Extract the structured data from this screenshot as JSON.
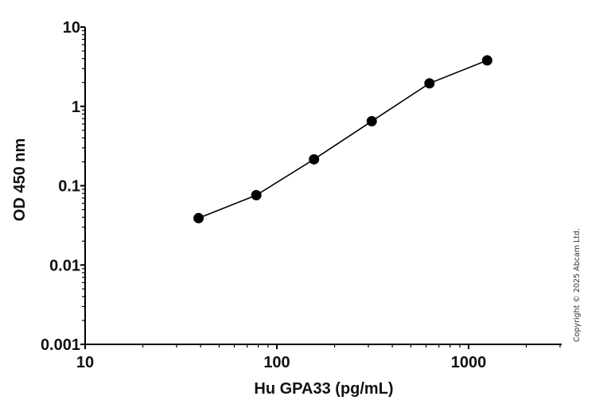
{
  "chart_data": {
    "type": "line",
    "title": "",
    "xlabel": "Hu GPA33 (pg/mL)",
    "ylabel": "OD 450 nm",
    "x_scale": "log",
    "y_scale": "log",
    "xlim": [
      10,
      3000
    ],
    "ylim": [
      0.001,
      10
    ],
    "x_ticks": [
      "10",
      "100",
      "1000"
    ],
    "y_ticks": [
      "0.001",
      "0.01",
      "0.1",
      "1",
      "10"
    ],
    "grid": false,
    "legend": null,
    "series": [
      {
        "name": "Hu GPA33",
        "x": [
          39.06,
          78.13,
          156.25,
          312.5,
          625,
          1250
        ],
        "y": [
          0.039,
          0.076,
          0.215,
          0.65,
          1.95,
          3.8
        ],
        "marker": "circle",
        "color": "#000000"
      }
    ]
  },
  "footer": {
    "copyright": "Copyright © 2025 Abcam Ltd."
  }
}
